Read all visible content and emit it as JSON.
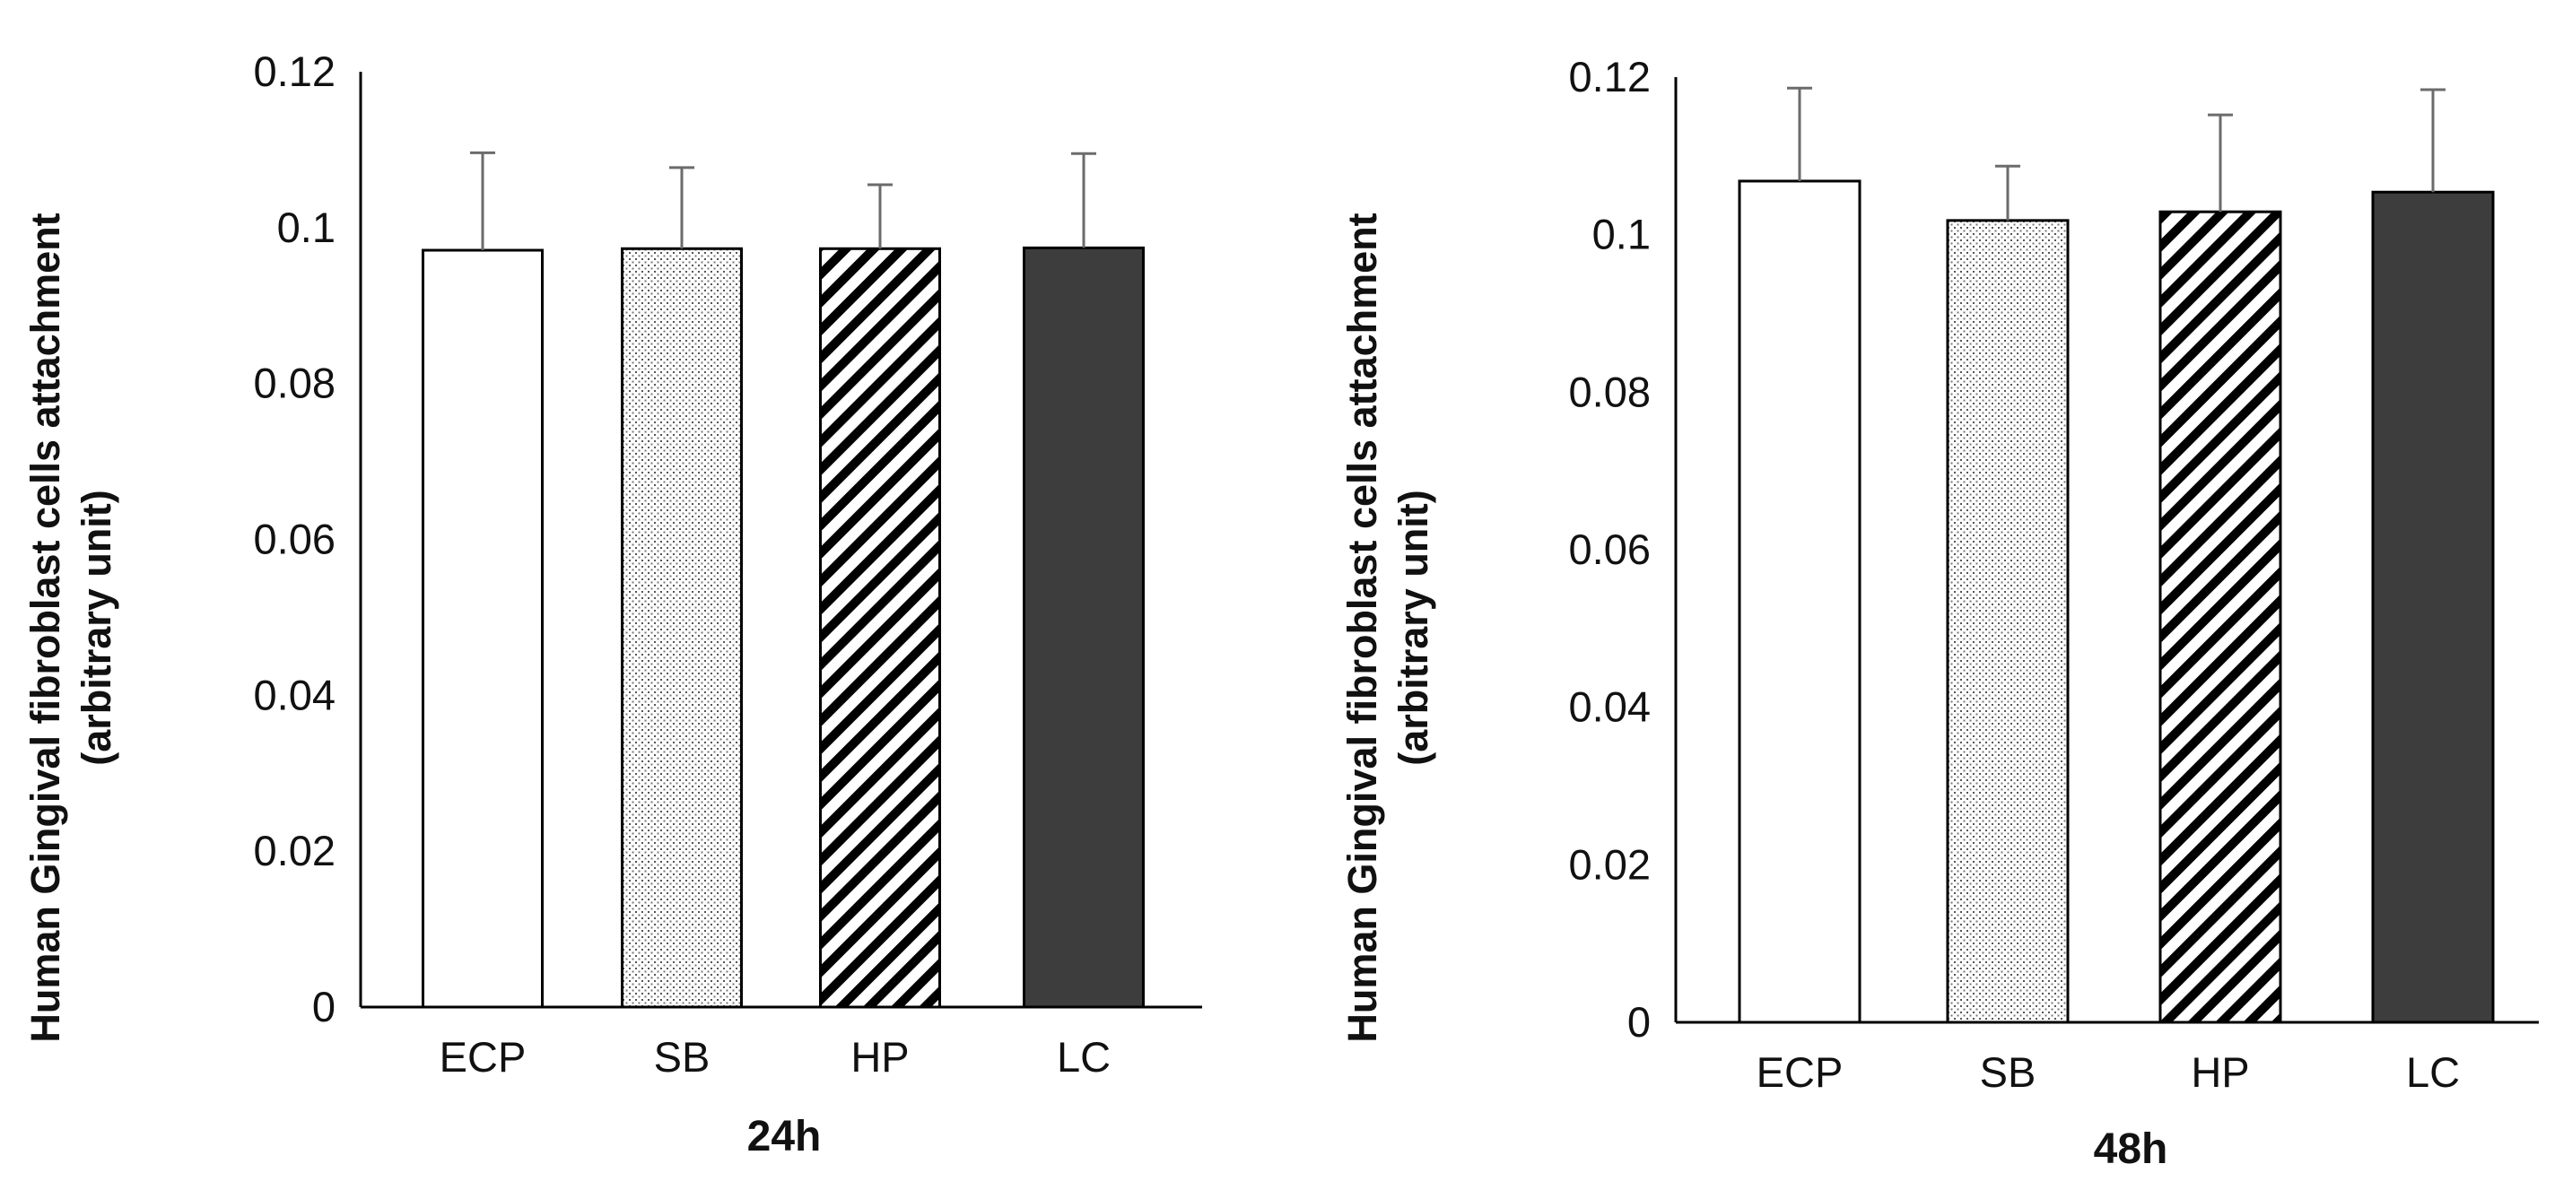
{
  "chart_data": [
    {
      "type": "bar",
      "title": "",
      "xlabel": "24h",
      "ylabel_line1": "Human Gingival fibroblast cells attachment",
      "ylabel_line2": "(arbitrary unit)",
      "ylim": [
        0,
        0.12
      ],
      "yticks": [
        "0",
        "0.02",
        "0.04",
        "0.06",
        "0.08",
        "0.1",
        "0.12"
      ],
      "categories": [
        "ECP",
        "SB",
        "HP",
        "LC"
      ],
      "values": [
        0.0971,
        0.0973,
        0.0973,
        0.0974
      ],
      "errors": [
        0.0125,
        0.0104,
        0.0082,
        0.0121
      ],
      "fills": [
        "white",
        "dots",
        "stripes",
        "dark"
      ],
      "legend": "none",
      "grid": false
    },
    {
      "type": "bar",
      "title": "",
      "xlabel": "48h",
      "ylabel_line1": "Human Gingival fibroblast cells attachment",
      "ylabel_line2": "(arbitrary unit)",
      "ylim": [
        0,
        0.12
      ],
      "yticks": [
        "0",
        "0.02",
        "0.04",
        "0.06",
        "0.08",
        "0.1",
        "0.12"
      ],
      "categories": [
        "ECP",
        "SB",
        "HP",
        "LC"
      ],
      "values": [
        0.1068,
        0.1018,
        0.1029,
        0.1054
      ],
      "errors": [
        0.0118,
        0.0069,
        0.0123,
        0.013
      ],
      "fills": [
        "white",
        "dots",
        "stripes",
        "dark"
      ],
      "legend": "none",
      "grid": false
    }
  ],
  "colors": {
    "bar_edge": "#000000",
    "dark_bar": "#3d3d3d",
    "error_bar": "#6b6b6b",
    "axis": "#000000",
    "dots": "#555555",
    "stripes": "#000000"
  }
}
